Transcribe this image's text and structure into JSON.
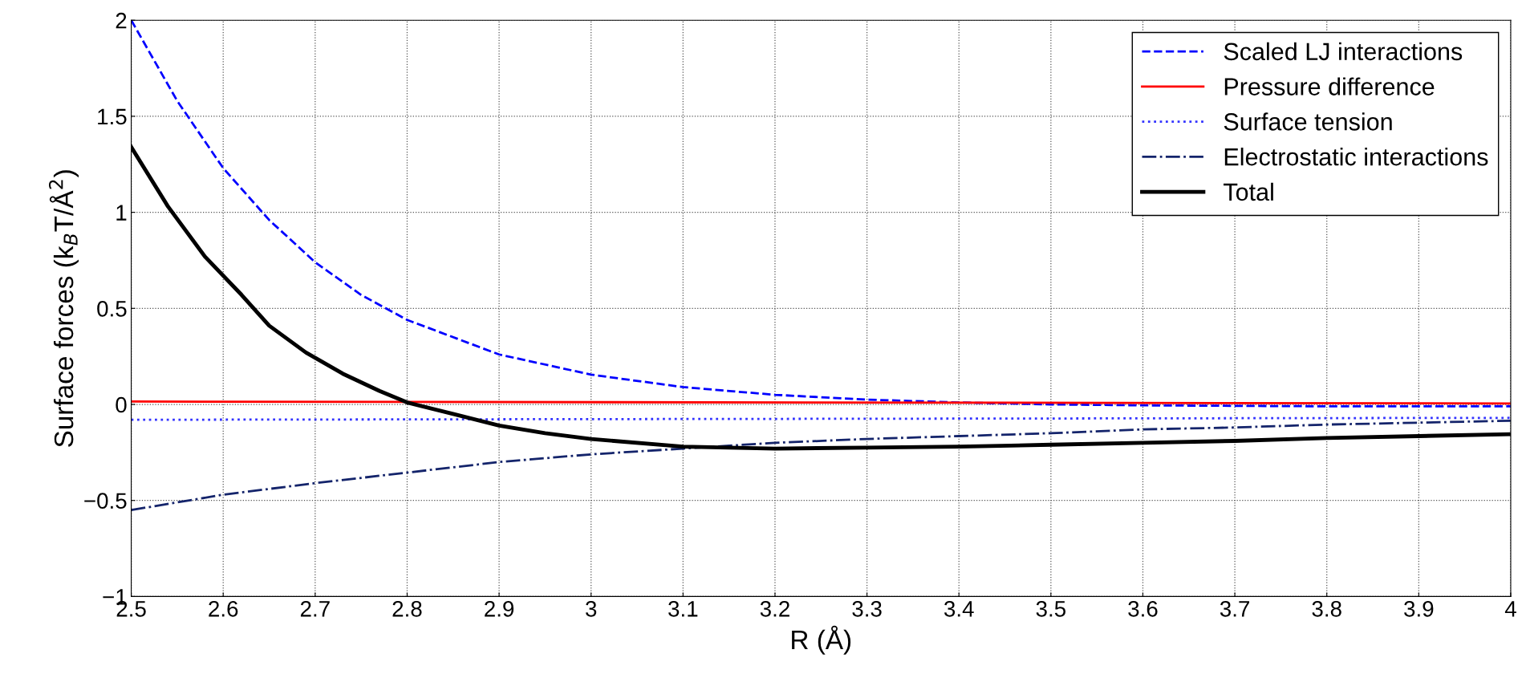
{
  "chart_data": {
    "type": "line",
    "xlabel": "R (Å)",
    "ylabel": "Surface forces (k$_{B}$T/Å$^{2}$)",
    "xlim": [
      2.5,
      4
    ],
    "xticks": [
      2.5,
      2.6,
      2.7,
      2.8,
      2.9,
      3,
      3.1,
      3.2,
      3.3,
      3.4,
      3.5,
      3.6,
      3.7,
      3.8,
      3.9,
      4
    ],
    "ylim": [
      -1,
      2
    ],
    "yticks": [
      -1,
      -0.5,
      0,
      0.5,
      1,
      1.5,
      2
    ],
    "grid": true,
    "legend": "top right",
    "marker": "none",
    "series": [
      {
        "name": "Scaled LJ interactions",
        "color": "#0000ff",
        "line_style": "dashed",
        "x": [
          2.5,
          2.55,
          2.6,
          2.65,
          2.7,
          2.75,
          2.8,
          2.9,
          3.0,
          3.1,
          3.2,
          3.3,
          3.4,
          3.5,
          3.6,
          3.8,
          4.0
        ],
        "values": [
          2.0,
          1.58,
          1.23,
          0.96,
          0.74,
          0.57,
          0.44,
          0.26,
          0.155,
          0.09,
          0.05,
          0.025,
          0.01,
          0,
          -0.005,
          -0.01,
          -0.01
        ]
      },
      {
        "name": "Pressure difference",
        "color": "#ff0000",
        "line_style": "solid",
        "x": [
          2.5,
          4.0
        ],
        "values": [
          0.015,
          0.005
        ]
      },
      {
        "name": "Surface tension",
        "color": "#3333ff",
        "line_style": "dotted",
        "x": [
          2.5,
          4.0
        ],
        "values": [
          -0.08,
          -0.07
        ]
      },
      {
        "name": "Electrostatic interactions",
        "color": "#14246b",
        "line_style": "dashdot",
        "x": [
          2.5,
          2.6,
          2.7,
          2.8,
          2.9,
          3.0,
          3.1,
          3.2,
          3.3,
          3.4,
          3.5,
          3.6,
          3.7,
          3.8,
          3.9,
          4.0
        ],
        "values": [
          -0.55,
          -0.47,
          -0.41,
          -0.355,
          -0.3,
          -0.26,
          -0.23,
          -0.2,
          -0.18,
          -0.165,
          -0.15,
          -0.13,
          -0.12,
          -0.105,
          -0.095,
          -0.085
        ]
      },
      {
        "name": "Total",
        "color": "#000000",
        "line_style": "solid",
        "x": [
          2.5,
          2.54,
          2.58,
          2.62,
          2.65,
          2.69,
          2.73,
          2.77,
          2.8,
          2.85,
          2.9,
          2.95,
          3.0,
          3.1,
          3.2,
          3.3,
          3.4,
          3.5,
          3.6,
          3.7,
          3.8,
          3.9,
          4.0
        ],
        "values": [
          1.34,
          1.03,
          0.77,
          0.57,
          0.41,
          0.27,
          0.16,
          0.07,
          0.01,
          -0.05,
          -0.11,
          -0.15,
          -0.18,
          -0.22,
          -0.23,
          -0.225,
          -0.22,
          -0.21,
          -0.2,
          -0.19,
          -0.175,
          -0.165,
          -0.155
        ]
      }
    ]
  }
}
